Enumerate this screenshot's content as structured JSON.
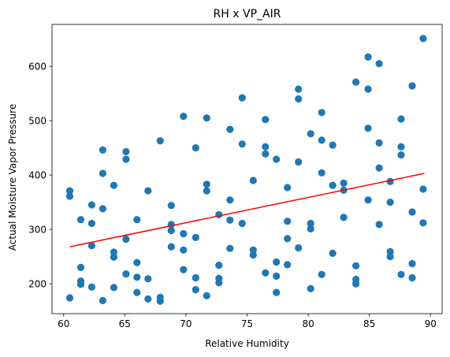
{
  "chart_data": {
    "type": "scatter",
    "title": "RH x VP_AIR",
    "xlabel": "Relative Humidity",
    "ylabel": "Actual Moisture Vapor Pressure",
    "xlim": [
      59.05,
      90.95
    ],
    "ylim": [
      145,
      677
    ],
    "xticks": [
      60,
      65,
      70,
      75,
      80,
      85,
      90
    ],
    "yticks": [
      200,
      300,
      400,
      500,
      600
    ],
    "grid": false,
    "point_color": "#1f77b4",
    "trend_color": "#ff0000",
    "trendline": {
      "x": [
        60.5,
        89.5
      ],
      "y": [
        268,
        403
      ]
    },
    "points": [
      [
        60.5,
        371
      ],
      [
        60.5,
        361
      ],
      [
        60.5,
        174
      ],
      [
        61.4,
        318
      ],
      [
        61.4,
        230
      ],
      [
        61.4,
        205
      ],
      [
        61.4,
        199
      ],
      [
        62.3,
        345
      ],
      [
        62.3,
        311
      ],
      [
        62.3,
        270
      ],
      [
        62.3,
        194
      ],
      [
        63.2,
        446
      ],
      [
        63.2,
        403
      ],
      [
        63.2,
        338
      ],
      [
        63.2,
        169
      ],
      [
        64.1,
        381
      ],
      [
        64.1,
        258
      ],
      [
        64.1,
        249
      ],
      [
        64.1,
        193
      ],
      [
        65.1,
        443
      ],
      [
        65.1,
        429
      ],
      [
        65.1,
        282
      ],
      [
        65.1,
        218
      ],
      [
        66.0,
        318
      ],
      [
        66.0,
        239
      ],
      [
        66.0,
        212
      ],
      [
        66.0,
        184
      ],
      [
        66.9,
        371
      ],
      [
        66.9,
        209
      ],
      [
        66.9,
        172
      ],
      [
        67.9,
        463
      ],
      [
        67.9,
        175
      ],
      [
        67.9,
        168
      ],
      [
        68.8,
        344
      ],
      [
        68.8,
        309
      ],
      [
        68.8,
        298
      ],
      [
        68.8,
        268
      ],
      [
        69.8,
        508
      ],
      [
        69.8,
        292
      ],
      [
        69.8,
        262
      ],
      [
        69.8,
        226
      ],
      [
        70.8,
        450
      ],
      [
        70.8,
        285
      ],
      [
        70.8,
        211
      ],
      [
        70.8,
        189
      ],
      [
        71.7,
        505
      ],
      [
        71.7,
        383
      ],
      [
        71.7,
        371
      ],
      [
        71.7,
        178
      ],
      [
        72.7,
        327
      ],
      [
        72.7,
        234
      ],
      [
        72.7,
        210
      ],
      [
        72.7,
        202
      ],
      [
        73.6,
        484
      ],
      [
        73.6,
        354
      ],
      [
        73.6,
        317
      ],
      [
        73.6,
        265
      ],
      [
        74.6,
        542
      ],
      [
        74.6,
        457
      ],
      [
        74.6,
        311
      ],
      [
        75.5,
        390
      ],
      [
        75.5,
        262
      ],
      [
        75.5,
        253
      ],
      [
        76.5,
        502
      ],
      [
        76.5,
        452
      ],
      [
        76.5,
        439
      ],
      [
        76.5,
        220
      ],
      [
        77.4,
        429
      ],
      [
        77.4,
        240
      ],
      [
        77.4,
        214
      ],
      [
        77.4,
        184
      ],
      [
        78.3,
        377
      ],
      [
        78.3,
        315
      ],
      [
        78.3,
        283
      ],
      [
        78.3,
        235
      ],
      [
        79.2,
        558
      ],
      [
        79.2,
        540
      ],
      [
        79.2,
        424
      ],
      [
        79.2,
        266
      ],
      [
        80.2,
        476
      ],
      [
        80.2,
        311
      ],
      [
        80.2,
        301
      ],
      [
        80.2,
        191
      ],
      [
        81.1,
        515
      ],
      [
        81.1,
        464
      ],
      [
        81.1,
        404
      ],
      [
        81.1,
        217
      ],
      [
        82.0,
        455
      ],
      [
        82.0,
        381
      ],
      [
        82.0,
        256
      ],
      [
        82.9,
        385
      ],
      [
        82.9,
        372
      ],
      [
        82.9,
        322
      ],
      [
        83.9,
        571
      ],
      [
        83.9,
        233
      ],
      [
        83.9,
        208
      ],
      [
        83.9,
        200
      ],
      [
        84.9,
        617
      ],
      [
        84.9,
        558
      ],
      [
        84.9,
        486
      ],
      [
        84.9,
        354
      ],
      [
        85.8,
        605
      ],
      [
        85.8,
        459
      ],
      [
        85.8,
        413
      ],
      [
        85.8,
        309
      ],
      [
        86.7,
        388
      ],
      [
        86.7,
        350
      ],
      [
        86.7,
        259
      ],
      [
        86.7,
        250
      ],
      [
        87.6,
        503
      ],
      [
        87.6,
        452
      ],
      [
        87.6,
        437
      ],
      [
        87.6,
        217
      ],
      [
        88.5,
        564
      ],
      [
        88.5,
        332
      ],
      [
        88.5,
        237
      ],
      [
        88.5,
        211
      ],
      [
        89.4,
        651
      ],
      [
        89.4,
        374
      ],
      [
        89.4,
        312
      ]
    ]
  }
}
